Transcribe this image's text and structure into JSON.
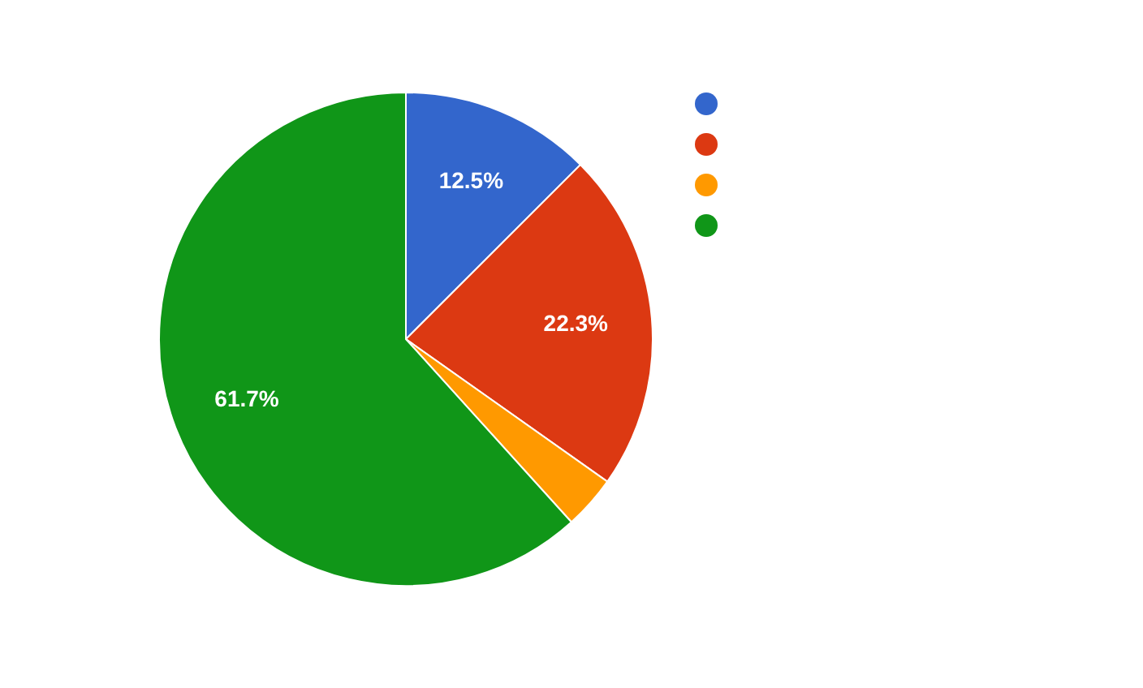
{
  "chart_data": {
    "type": "pie",
    "categories": [
      null,
      null,
      null,
      null
    ],
    "values": [
      12.5,
      22.3,
      3.5,
      61.7
    ],
    "colors": [
      "#3366cc",
      "#dc3912",
      "#ff9900",
      "#109618"
    ],
    "value_labels": [
      "12.5%",
      "22.3%",
      null,
      "61.7%"
    ]
  }
}
